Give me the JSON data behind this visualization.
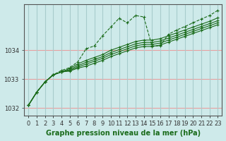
{
  "title": "Graphe pression niveau de la mer (hPa)",
  "bg_color": "#ceeaea",
  "hgrid_color": "#e8a0a0",
  "vgrid_color": "#a8cccc",
  "line_color": "#1a6b1a",
  "xlim": [
    -0.5,
    23.5
  ],
  "ylim": [
    1031.75,
    1035.6
  ],
  "yticks": [
    1032,
    1033,
    1034
  ],
  "xtick_labels": [
    "0",
    "1",
    "2",
    "3",
    "4",
    "5",
    "6",
    "7",
    "8",
    "9",
    "10",
    "11",
    "12",
    "13",
    "14",
    "15",
    "16",
    "17",
    "18",
    "19",
    "20",
    "21",
    "22",
    "23"
  ],
  "series_main": [
    1032.1,
    1032.55,
    1032.9,
    1033.15,
    1033.3,
    1033.4,
    1033.6,
    1034.05,
    1034.15,
    1034.5,
    1034.8,
    1035.1,
    1034.95,
    1035.2,
    1035.15,
    1034.15,
    1034.15,
    1034.55,
    1034.7,
    1034.82,
    1034.95,
    1035.08,
    1035.2,
    1035.38
  ],
  "series_lines": [
    [
      1032.1,
      1032.55,
      1032.9,
      1033.15,
      1033.25,
      1033.28,
      1033.38,
      1033.45,
      1033.55,
      1033.65,
      1033.78,
      1033.88,
      1033.98,
      1034.08,
      1034.13,
      1034.13,
      1034.18,
      1034.28,
      1034.38,
      1034.48,
      1034.58,
      1034.68,
      1034.78,
      1034.88
    ],
    [
      1032.1,
      1032.55,
      1032.9,
      1033.15,
      1033.25,
      1033.3,
      1033.42,
      1033.52,
      1033.62,
      1033.72,
      1033.85,
      1033.95,
      1034.05,
      1034.15,
      1034.2,
      1034.2,
      1034.25,
      1034.35,
      1034.45,
      1034.55,
      1034.65,
      1034.75,
      1034.85,
      1034.95
    ],
    [
      1032.1,
      1032.55,
      1032.9,
      1033.15,
      1033.25,
      1033.33,
      1033.47,
      1033.58,
      1033.68,
      1033.78,
      1033.92,
      1034.02,
      1034.12,
      1034.22,
      1034.27,
      1034.27,
      1034.32,
      1034.42,
      1034.52,
      1034.62,
      1034.72,
      1034.82,
      1034.92,
      1035.02
    ],
    [
      1032.1,
      1032.55,
      1032.9,
      1033.15,
      1033.25,
      1033.37,
      1033.53,
      1033.65,
      1033.75,
      1033.85,
      1034.0,
      1034.1,
      1034.2,
      1034.3,
      1034.35,
      1034.35,
      1034.4,
      1034.5,
      1034.6,
      1034.7,
      1034.8,
      1034.9,
      1035.0,
      1035.12
    ]
  ],
  "marker": "+",
  "marker_size": 3,
  "linewidth": 0.8,
  "tick_fontsize": 6,
  "title_fontsize": 7
}
